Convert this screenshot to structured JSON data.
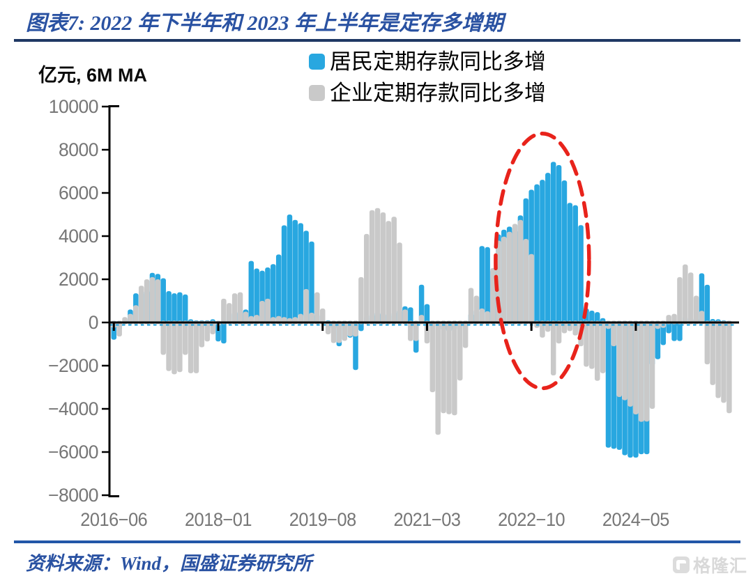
{
  "header": {
    "title": "图表7: 2022 年下半年和 2023 年上半年是定存多增期"
  },
  "chart": {
    "unit_label": "亿元, 6M MA"
  },
  "footer": {
    "source": "资料来源：Wind，国盛证券研究所",
    "watermark": "格隆汇"
  },
  "chart_data": {
    "type": "bar",
    "title": "2022 年下半年和 2023 年上半年是定存多增期",
    "ylabel": "亿元, 6M MA",
    "x_start": "2016-06",
    "x_end": "2025-10",
    "frequency": "monthly",
    "ylim": [
      -8000,
      10000
    ],
    "y_ticks": [
      10000,
      8000,
      6000,
      4000,
      2000,
      0,
      -2000,
      -4000,
      -6000,
      -8000
    ],
    "x_tick_labels": [
      "2016-06",
      "2018-01",
      "2019-08",
      "2021-03",
      "2022-10",
      "2024-05"
    ],
    "x_tick_indices": [
      0,
      19,
      38,
      57,
      76,
      95
    ],
    "grid": false,
    "legend_position": "top",
    "axis_color": "#000000",
    "tick_label_color": "#767676",
    "zero_dash_color": "#28a7e0",
    "series": [
      {
        "name": "居民定期存款同比多增",
        "color": "#28a7e0",
        "values": [
          -800,
          -350,
          150,
          600,
          1350,
          1400,
          1500,
          2300,
          2250,
          2050,
          1450,
          1350,
          1400,
          1300,
          150,
          100,
          100,
          100,
          150,
          -880,
          -970,
          450,
          500,
          550,
          600,
          2850,
          2500,
          2400,
          2550,
          2700,
          3150,
          4500,
          5000,
          4750,
          4600,
          4250,
          3750,
          400,
          150,
          100,
          -300,
          -1100,
          -300,
          -700,
          -2200,
          -400,
          300,
          400,
          500,
          450,
          400,
          500,
          600,
          750,
          700,
          -1400,
          1750,
          850,
          -150,
          -300,
          -400,
          -450,
          -400,
          -350,
          -250,
          430,
          600,
          3540,
          3490,
          2450,
          4080,
          4300,
          4440,
          4300,
          4960,
          5750,
          6150,
          6400,
          6610,
          6930,
          7440,
          7290,
          6580,
          5540,
          5430,
          4510,
          650,
          550,
          480,
          200,
          -5800,
          -5850,
          -5900,
          -6150,
          -6260,
          -6260,
          -6100,
          -6100,
          -2000,
          -1700,
          -1050,
          -500,
          -860,
          -860,
          300,
          250,
          200,
          2280,
          1745,
          160,
          150,
          100,
          80
        ]
      },
      {
        "name": "企业定期存款同比多增",
        "color": "#c9c9c9",
        "values": [
          -250,
          -650,
          250,
          400,
          800,
          1700,
          2000,
          2100,
          2000,
          -1500,
          -2250,
          -2400,
          -2300,
          -1500,
          -2350,
          -2350,
          -1150,
          -880,
          -550,
          -150,
          1100,
          900,
          1350,
          1400,
          500,
          300,
          350,
          1000,
          1100,
          250,
          300,
          250,
          200,
          250,
          400,
          1550,
          450,
          1400,
          650,
          -550,
          -950,
          -950,
          -850,
          -650,
          -650,
          2100,
          4100,
          5200,
          5300,
          5100,
          4700,
          4900,
          3700,
          600,
          -860,
          -860,
          350,
          -970,
          -3230,
          -5200,
          -4200,
          -4250,
          -4300,
          -2690,
          -1180,
          1600,
          1240,
          650,
          520,
          2520,
          3790,
          3975,
          4200,
          4570,
          4750,
          3870,
          3170,
          -250,
          -700,
          -430,
          -2450,
          -970,
          -500,
          -400,
          -600,
          -1100,
          -2050,
          -2150,
          -2700,
          -2350,
          -300,
          -1100,
          -3450,
          -3600,
          -3900,
          -4260,
          -4600,
          -4590,
          -4000,
          -300,
          -250,
          350,
          400,
          2100,
          2690,
          2315,
          1240,
          540,
          -1940,
          -2900,
          -3500,
          -3720,
          -4200
        ]
      }
    ],
    "highlight": {
      "shape": "dashed-ellipse",
      "color": "#e8231b",
      "x_from_month": "2022-04",
      "x_to_month": "2023-08",
      "y_top_value": 8750,
      "y_bottom_value": -3050
    }
  }
}
